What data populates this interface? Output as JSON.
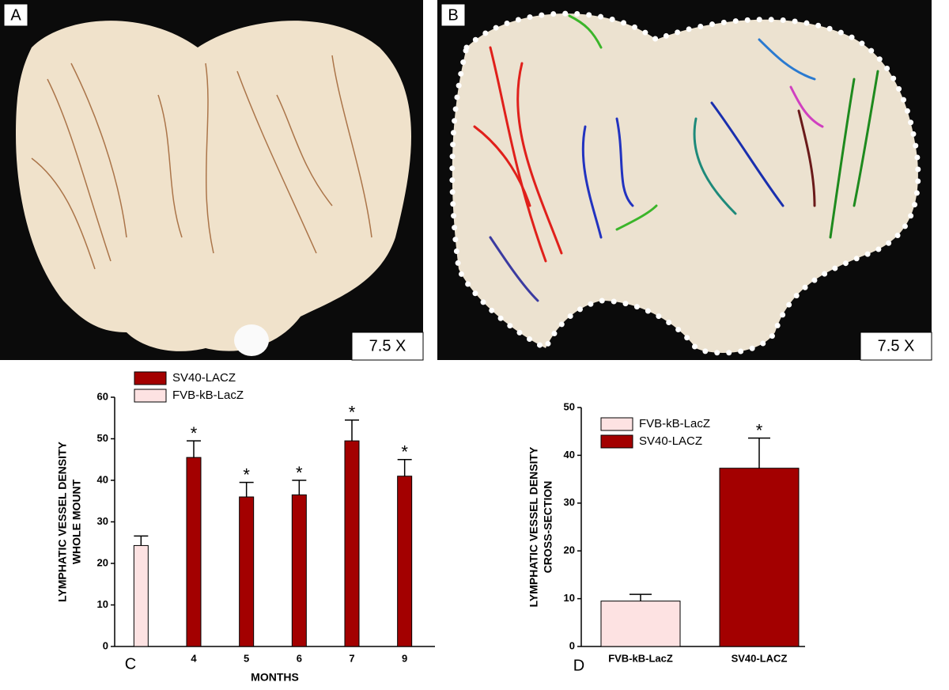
{
  "panels": [
    {
      "label": "A",
      "scale": "7.5 X"
    },
    {
      "label": "B",
      "scale": "7.5 X"
    }
  ],
  "chart_data": [
    {
      "type": "bar",
      "panel_label": "C",
      "ylabel": [
        "LYMPHATIC VESSEL DENSITY",
        "WHOLE MOUNT"
      ],
      "xlabel": "MONTHS",
      "categories": [
        null,
        "4",
        "5",
        "6",
        "7",
        "9"
      ],
      "series": [
        {
          "name": "SV40-LACZ",
          "color": "#a30000",
          "values": [
            null,
            45.5,
            36,
            36.5,
            49.5,
            41
          ],
          "errors": [
            null,
            4,
            3.5,
            3.5,
            5,
            4
          ]
        },
        {
          "name": "FVB-kB-LacZ",
          "color": "#fde2e2",
          "values": [
            24.3,
            null,
            null,
            null,
            null,
            null
          ],
          "errors": [
            2.3,
            null,
            null,
            null,
            null,
            null
          ]
        }
      ],
      "significance": [
        null,
        "*",
        "*",
        "*",
        "*",
        "*"
      ],
      "ylim": [
        0,
        60
      ],
      "yticks": [
        0,
        10,
        20,
        30,
        40,
        50,
        60
      ],
      "grid": false
    },
    {
      "type": "bar",
      "panel_label": "D",
      "ylabel": [
        "LYMPHATIC VESSEL DENSITY",
        "CROSS-SECTION"
      ],
      "categories": [
        "FVB-kB-LacZ",
        "SV40-LACZ"
      ],
      "series": [
        {
          "name": "FVB-kB-LacZ",
          "color": "#fde2e2",
          "values": [
            9.5,
            null
          ],
          "errors": [
            1.4,
            null
          ]
        },
        {
          "name": "SV40-LACZ",
          "color": "#a30000",
          "values": [
            null,
            37.3
          ],
          "errors": [
            null,
            6.3
          ]
        }
      ],
      "significance": [
        null,
        "*"
      ],
      "ylim": [
        0,
        50
      ],
      "yticks": [
        0,
        10,
        20,
        30,
        40,
        50
      ],
      "grid": false
    }
  ]
}
